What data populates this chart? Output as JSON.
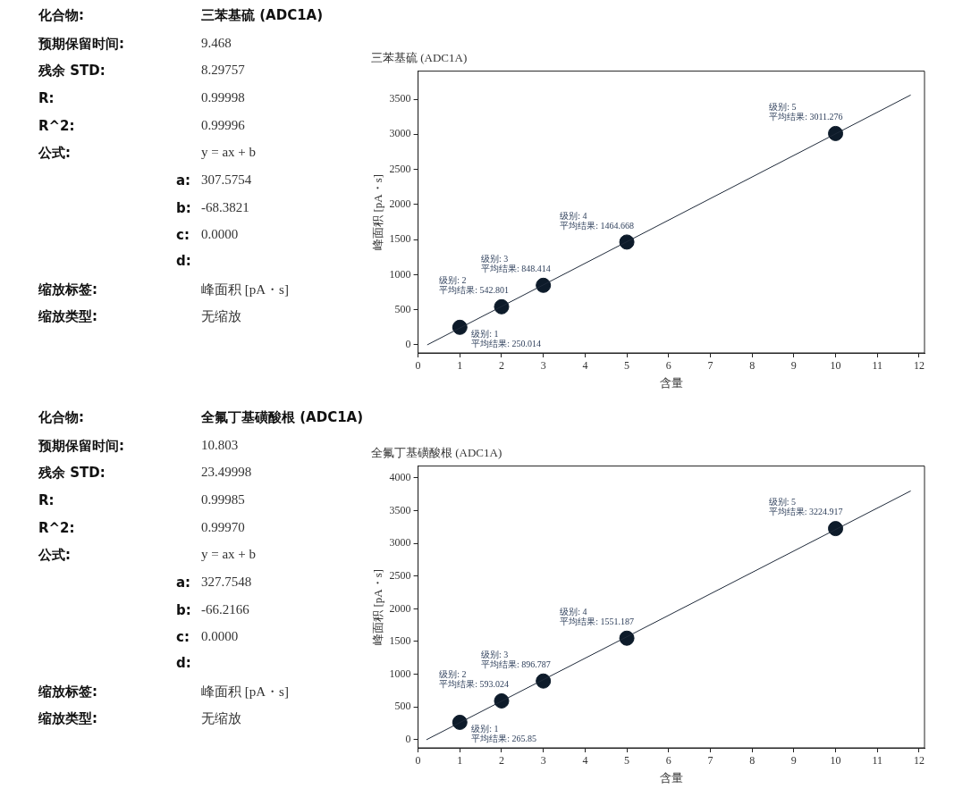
{
  "chart_data": [
    {
      "type": "other",
      "annotations": [
        "化合物:",
        "三苯基硫 (ADC1A)",
        "预期保留时间:",
        "9.468",
        "残余 STD:",
        "8.29757",
        "R:",
        "0.99998",
        "R^2:",
        "0.99996",
        "公式:",
        "y = ax + b",
        "a:",
        "307.5754",
        "b:",
        "-68.3821",
        "c:",
        "0.0000",
        "d:",
        "缩放标签:",
        "峰面积 [pA・s]",
        "缩放类型:",
        "无缩放"
      ]
    },
    {
      "type": "scatter",
      "title": "三苯基硫 (ADC1A)",
      "xlabel": "含量",
      "ylabel": "峰面积 [pA・s]",
      "xlim": [
        0,
        12.13
      ],
      "xticks": [
        0,
        1,
        2,
        3,
        4,
        5,
        6,
        7,
        8,
        9,
        10,
        11,
        12
      ],
      "ylim": [
        -115,
        3900
      ],
      "yticks": [
        0,
        500,
        1000,
        1500,
        2000,
        2500,
        3000,
        3500
      ],
      "marker": "circle",
      "series": [
        {
          "type": "line",
          "x": [
            0.22,
            11.8
          ],
          "values": [
            0,
            3560
          ],
          "color": "#1f2a3a",
          "marker": "none"
        },
        {
          "type": "scatter",
          "x": [
            1,
            2,
            3,
            5,
            10
          ],
          "values": [
            250.014,
            542.801,
            848.414,
            1464.668,
            3011.276
          ],
          "color": "#0d1b2a",
          "value_labels": [
            "级别: 1\n平均结果: 250.014",
            "级别: 2\n平均结果: 542.801",
            "级别: 3\n平均结果: 848.414",
            "级别: 4\n平均结果: 1464.668",
            "级别: 5\n平均结果: 3011.276"
          ]
        }
      ]
    },
    {
      "type": "other",
      "annotations": [
        "化合物:",
        "全氟丁基磺酸根 (ADC1A)",
        "预期保留时间:",
        "10.803",
        "残余 STD:",
        "23.49998",
        "R:",
        "0.99985",
        "R^2:",
        "0.99970",
        "公式:",
        "y = ax + b",
        "a:",
        "327.7548",
        "b:",
        "-66.2166",
        "c:",
        "0.0000",
        "d:",
        "缩放标签:",
        "峰面积 [pA・s]",
        "缩放类型:",
        "无缩放"
      ]
    },
    {
      "type": "scatter",
      "title": "全氟丁基磺酸根 (ADC1A)",
      "xlabel": "含量",
      "ylabel": "峰面积 [pA・s]",
      "xlim": [
        0,
        12.13
      ],
      "xticks": [
        0,
        1,
        2,
        3,
        4,
        5,
        6,
        7,
        8,
        9,
        10,
        11,
        12
      ],
      "ylim": [
        -124,
        4180
      ],
      "yticks": [
        0,
        500,
        1000,
        1500,
        2000,
        2500,
        3000,
        3500,
        4000
      ],
      "marker": "circle",
      "series": [
        {
          "type": "line",
          "x": [
            0.2,
            11.8
          ],
          "values": [
            0,
            3800
          ],
          "color": "#1f2a3a",
          "marker": "none"
        },
        {
          "type": "scatter",
          "x": [
            1,
            2,
            3,
            5,
            10
          ],
          "values": [
            265.85,
            593.024,
            896.787,
            1551.187,
            3224.917
          ],
          "color": "#0d1b2a",
          "value_labels": [
            "级别: 1\n平均结果: 265.85",
            "级别: 2\n平均结果: 593.024",
            "级别: 3\n平均结果: 896.787",
            "级别: 4\n平均结果: 1551.187",
            "级别: 5\n平均结果: 3224.917"
          ]
        }
      ]
    }
  ]
}
